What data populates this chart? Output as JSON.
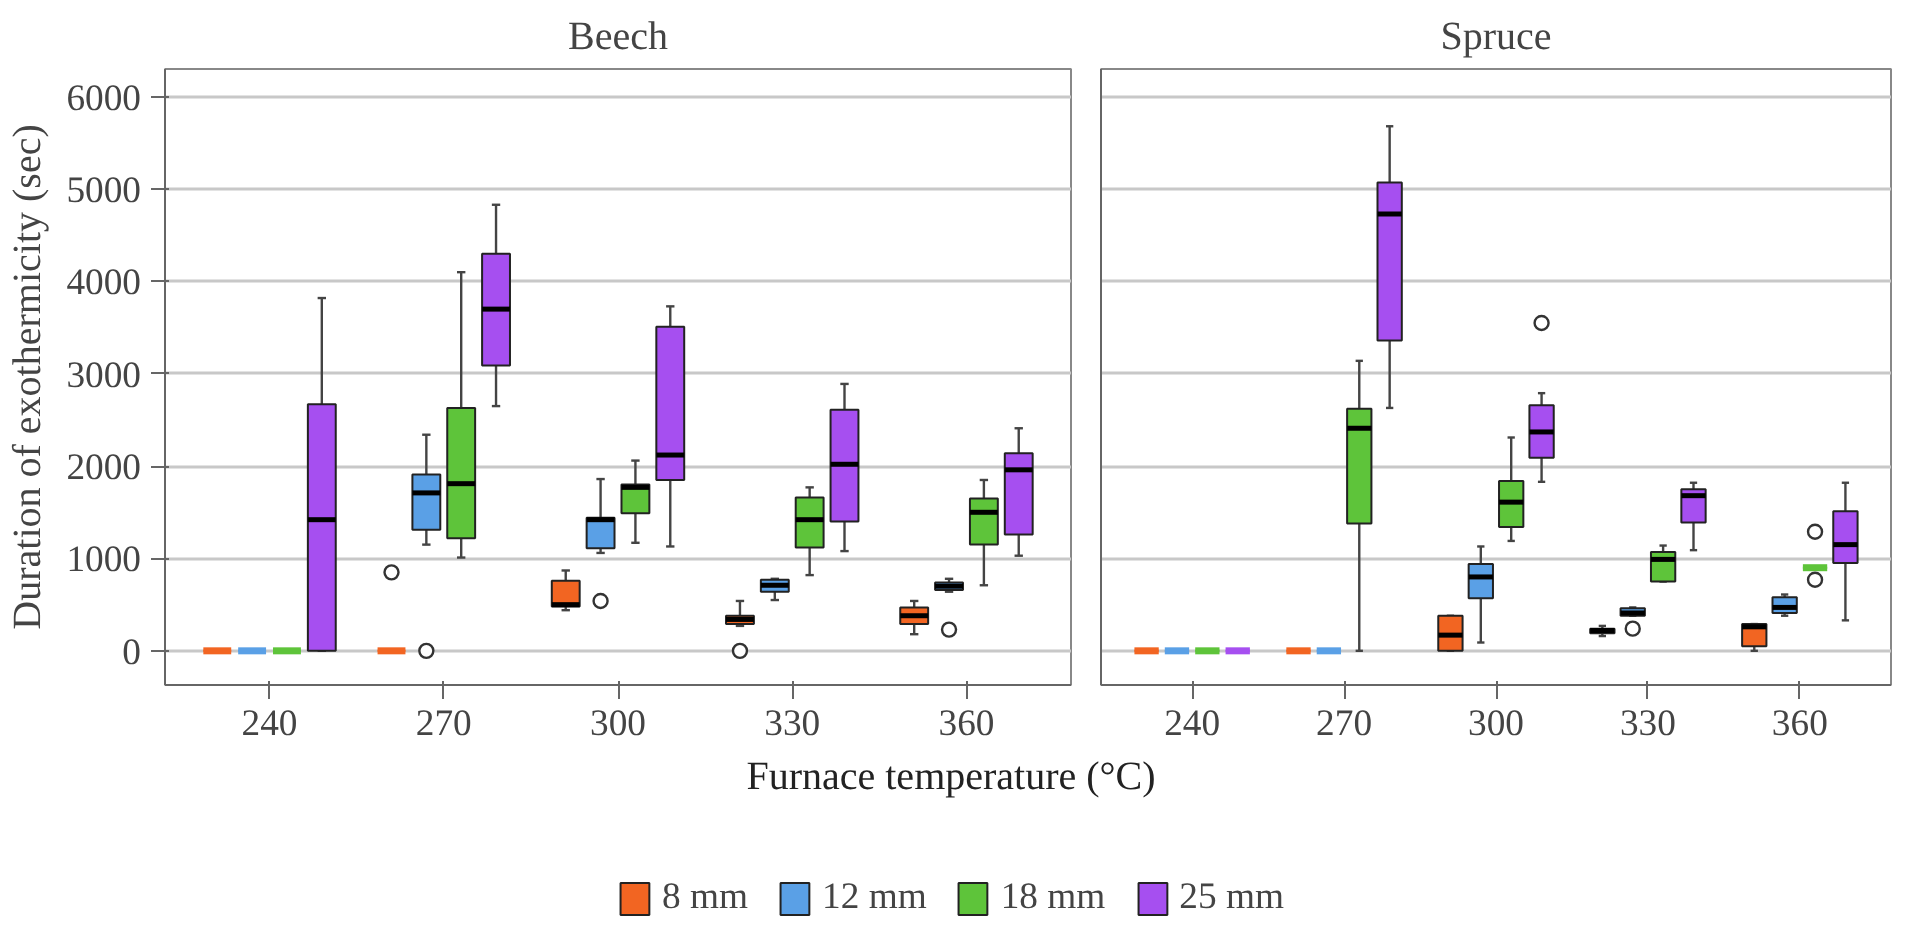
{
  "chart_data": [
    {
      "type": "box",
      "title": "Beech",
      "xlabel": "Furnace temperature (°C)",
      "ylabel": "Duration of exothermicity (sec)",
      "categories": [
        "240",
        "270",
        "300",
        "330",
        "360"
      ],
      "ylim": [
        -370,
        6300
      ],
      "yticks": [
        0,
        1000,
        2000,
        3000,
        4000,
        5000,
        6000
      ],
      "grid": "y",
      "legend": "bottom",
      "series": [
        {
          "name": "8 mm",
          "color": "#f26522",
          "boxes": [
            {
              "low": 0,
              "q1": 0,
              "median": 0,
              "q3": 0,
              "high": 0
            },
            {
              "low": 0,
              "q1": 0,
              "median": 0,
              "q3": 0,
              "high": 0,
              "outliers": [
                850
              ]
            },
            {
              "low": 440,
              "q1": 480,
              "median": 500,
              "q3": 760,
              "high": 870
            },
            {
              "low": 270,
              "q1": 290,
              "median": 340,
              "q3": 380,
              "high": 540,
              "outliers": [
                0
              ]
            },
            {
              "low": 180,
              "q1": 290,
              "median": 380,
              "q3": 470,
              "high": 540
            }
          ]
        },
        {
          "name": "12 mm",
          "color": "#5aa0e6",
          "boxes": [
            {
              "low": 0,
              "q1": 0,
              "median": 0,
              "q3": 0,
              "high": 0
            },
            {
              "low": 1150,
              "q1": 1310,
              "median": 1710,
              "q3": 1910,
              "high": 2340,
              "outliers": [
                0
              ]
            },
            {
              "low": 1060,
              "q1": 1110,
              "median": 1420,
              "q3": 1440,
              "high": 1860,
              "outliers": [
                540
              ]
            },
            {
              "low": 550,
              "q1": 640,
              "median": 710,
              "q3": 770,
              "high": 780
            },
            {
              "low": 640,
              "q1": 660,
              "median": 700,
              "q3": 740,
              "high": 780,
              "outliers": [
                230
              ]
            }
          ]
        },
        {
          "name": "18 mm",
          "color": "#5ec43a",
          "boxes": [
            {
              "low": 0,
              "q1": 0,
              "median": 0,
              "q3": 0,
              "high": 0
            },
            {
              "low": 1010,
              "q1": 1220,
              "median": 1810,
              "q3": 2630,
              "high": 4100
            },
            {
              "low": 1170,
              "q1": 1490,
              "median": 1770,
              "q3": 1800,
              "high": 2060
            },
            {
              "low": 820,
              "q1": 1120,
              "median": 1420,
              "q3": 1660,
              "high": 1770
            },
            {
              "low": 710,
              "q1": 1150,
              "median": 1500,
              "q3": 1650,
              "high": 1850
            }
          ]
        },
        {
          "name": "25 mm",
          "color": "#a64ff0",
          "boxes": [
            {
              "low": 0,
              "q1": 0,
              "median": 1420,
              "q3": 2670,
              "high": 3820
            },
            {
              "low": 2650,
              "q1": 3090,
              "median": 3700,
              "q3": 4300,
              "high": 4830
            },
            {
              "low": 1130,
              "q1": 1850,
              "median": 2120,
              "q3": 3510,
              "high": 3730
            },
            {
              "low": 1080,
              "q1": 1400,
              "median": 2020,
              "q3": 2610,
              "high": 2890
            },
            {
              "low": 1030,
              "q1": 1260,
              "median": 1960,
              "q3": 2140,
              "high": 2410
            }
          ]
        }
      ]
    },
    {
      "type": "box",
      "title": "Spruce",
      "categories": [
        "240",
        "270",
        "300",
        "330",
        "360"
      ],
      "ylim": [
        -370,
        6300
      ],
      "yticks": [
        0,
        1000,
        2000,
        3000,
        4000,
        5000,
        6000
      ],
      "grid": "y",
      "tick_labels": "x",
      "series": [
        {
          "color": "#f26522",
          "boxes": [
            {
              "low": 0,
              "q1": 0,
              "median": 0,
              "q3": 0,
              "high": 0
            },
            {
              "low": 0,
              "q1": 0,
              "median": 0,
              "q3": 0,
              "high": 0
            },
            {
              "low": 0,
              "q1": 0,
              "median": 170,
              "q3": 380,
              "high": 380
            },
            {
              "low": 160,
              "q1": 190,
              "median": 220,
              "q3": 240,
              "high": 270
            },
            {
              "low": 0,
              "q1": 50,
              "median": 260,
              "q3": 290,
              "high": 290
            }
          ]
        },
        {
          "color": "#5aa0e6",
          "boxes": [
            {
              "low": 0,
              "q1": 0,
              "median": 0,
              "q3": 0,
              "high": 0
            },
            {
              "low": 0,
              "q1": 0,
              "median": 0,
              "q3": 0,
              "high": 0
            },
            {
              "low": 90,
              "q1": 570,
              "median": 800,
              "q3": 940,
              "high": 1130
            },
            {
              "low": 380,
              "q1": 380,
              "median": 410,
              "q3": 460,
              "high": 470,
              "outliers": [
                240
              ]
            },
            {
              "low": 380,
              "q1": 410,
              "median": 470,
              "q3": 580,
              "high": 610
            }
          ]
        },
        {
          "color": "#5ec43a",
          "boxes": [
            {
              "low": 0,
              "q1": 0,
              "median": 0,
              "q3": 0,
              "high": 0
            },
            {
              "low": 0,
              "q1": 1380,
              "median": 2410,
              "q3": 2620,
              "high": 3140
            },
            {
              "low": 1190,
              "q1": 1340,
              "median": 1610,
              "q3": 1840,
              "high": 2310
            },
            {
              "low": 750,
              "q1": 750,
              "median": 990,
              "q3": 1070,
              "high": 1140
            },
            {
              "low": 900,
              "q1": 900,
              "median": 900,
              "q3": 900,
              "high": 900,
              "outliers": [
                1290,
                770
              ]
            }
          ]
        },
        {
          "color": "#a64ff0",
          "boxes": [
            {
              "low": 0,
              "q1": 0,
              "median": 0,
              "q3": 0,
              "high": 0
            },
            {
              "low": 2630,
              "q1": 3360,
              "median": 4730,
              "q3": 5070,
              "high": 5680
            },
            {
              "low": 1830,
              "q1": 2090,
              "median": 2370,
              "q3": 2660,
              "high": 2790,
              "outliers": [
                3550
              ]
            },
            {
              "low": 1090,
              "q1": 1390,
              "median": 1680,
              "q3": 1750,
              "high": 1820
            },
            {
              "low": 330,
              "q1": 950,
              "median": 1150,
              "q3": 1510,
              "high": 1820
            }
          ]
        }
      ]
    }
  ]
}
